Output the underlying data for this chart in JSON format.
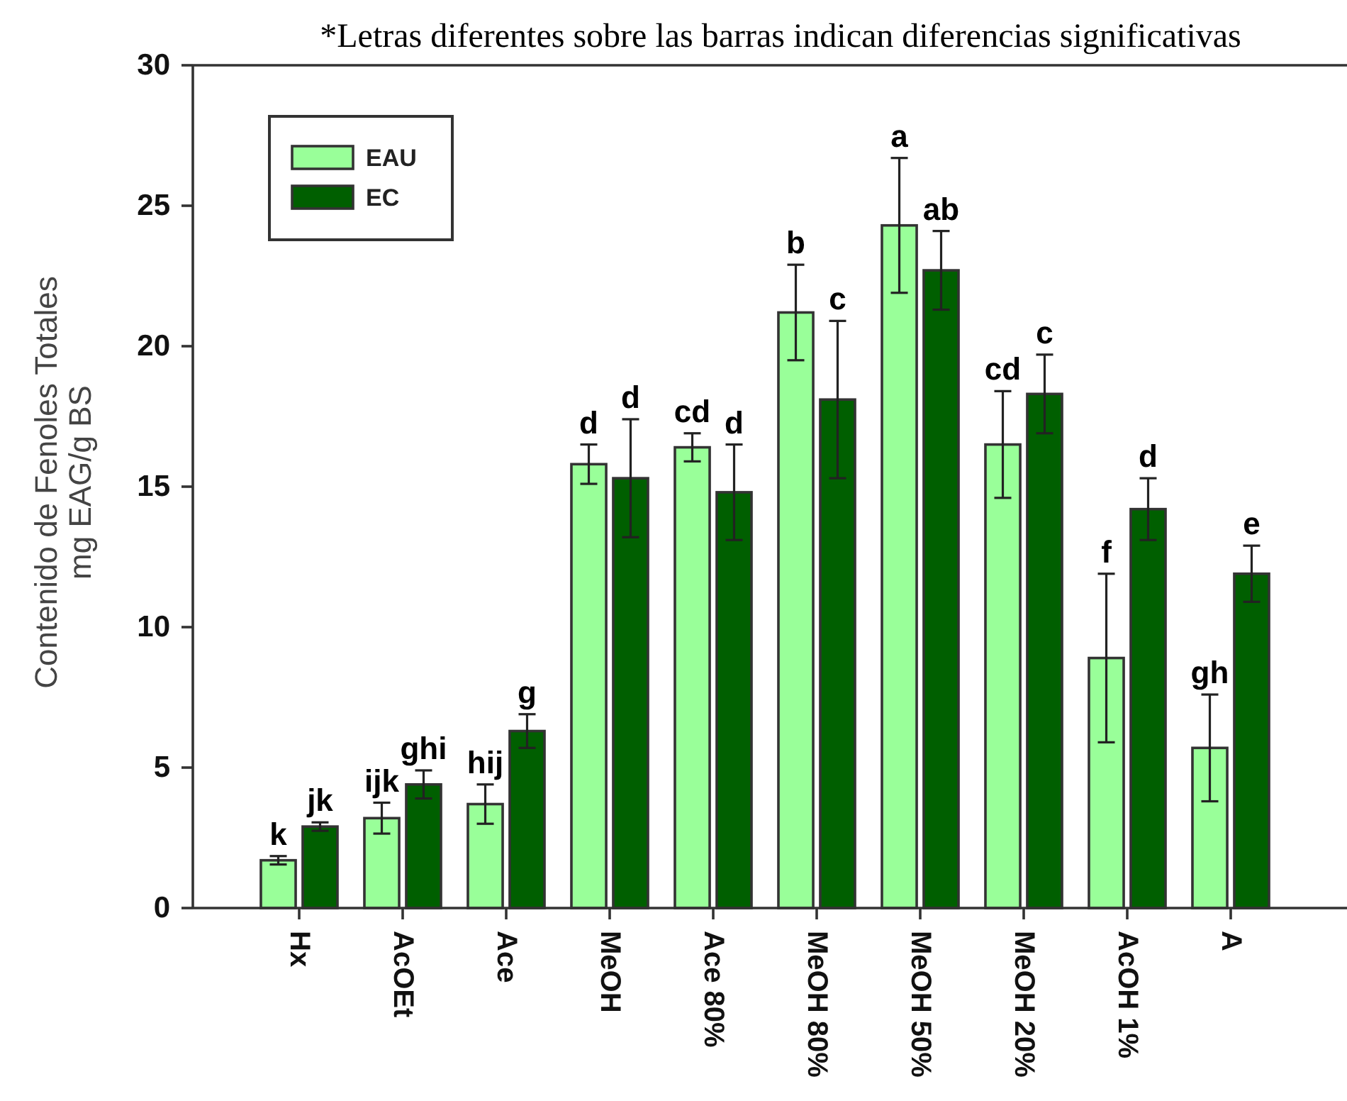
{
  "chart_data": {
    "type": "bar",
    "annotations": [
      "*Letras diferentes sobre las barras indican diferencias significativas"
    ],
    "ylabel": "Contenido de Fenoles Totales\nmg EAG/g BS",
    "categories": [
      "Hx",
      "AcOEt",
      "Ace",
      "MeOH",
      "Ace 80%",
      "MeOH 80%",
      "MeOH 50%",
      "MeOH 20%",
      "AcOH 1%",
      "A"
    ],
    "series": [
      {
        "name": "EAU",
        "color": "#99ff99",
        "values": [
          1.7,
          3.2,
          3.7,
          15.8,
          16.4,
          21.2,
          24.3,
          16.5,
          8.9,
          5.7
        ],
        "errors": [
          0.15,
          0.55,
          0.7,
          0.7,
          0.5,
          1.7,
          2.4,
          1.9,
          3.0,
          1.9
        ],
        "value_labels": [
          "k",
          "ijk",
          "hij",
          "d",
          "cd",
          "b",
          "a",
          "cd",
          "f",
          "gh"
        ]
      },
      {
        "name": "EC",
        "color": "#005f00",
        "values": [
          2.9,
          4.4,
          6.3,
          15.3,
          14.8,
          18.1,
          22.7,
          18.3,
          14.2,
          11.9
        ],
        "errors": [
          0.15,
          0.5,
          0.6,
          2.1,
          1.7,
          2.8,
          1.4,
          1.4,
          1.1,
          1.0
        ],
        "value_labels": [
          "jk",
          "ghi",
          "g",
          "d",
          "d",
          "c",
          "ab",
          "c",
          "d",
          "e"
        ]
      }
    ],
    "ylim": [
      0,
      30
    ],
    "yticks": [
      0,
      5,
      10,
      15,
      20,
      25,
      30
    ],
    "legend": "top left"
  }
}
